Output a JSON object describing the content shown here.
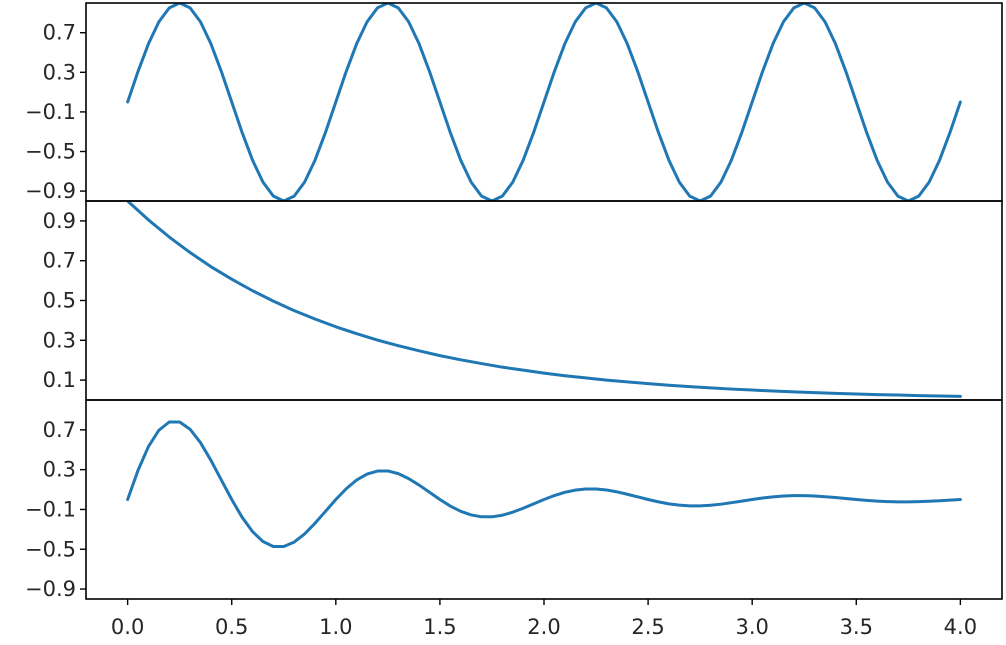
{
  "chart_data": [
    {
      "type": "line",
      "panel": "top",
      "title": "",
      "xlabel": "",
      "ylabel": "",
      "xlim": [
        -0.2,
        4.2
      ],
      "ylim": [
        -1.0,
        1.0
      ],
      "yticks": [
        0.7,
        0.3,
        -0.1,
        -0.5,
        -0.9
      ],
      "ytick_labels": [
        "0.7",
        "0.3",
        "−0.1",
        "−0.5",
        "−0.9"
      ],
      "grid": false,
      "legend": "none",
      "series": [
        {
          "color": "#1f77b4",
          "x": [
            0.0,
            0.05,
            0.1,
            0.15,
            0.2,
            0.25,
            0.3,
            0.35,
            0.4,
            0.45,
            0.5,
            0.55,
            0.6,
            0.65,
            0.7,
            0.75,
            0.8,
            0.85,
            0.9,
            0.95,
            1.0,
            1.05,
            1.1,
            1.15,
            1.2,
            1.25,
            1.3,
            1.35,
            1.4,
            1.45,
            1.5,
            1.55,
            1.6,
            1.65,
            1.7,
            1.75,
            1.8,
            1.85,
            1.9,
            1.95,
            2.0,
            2.05,
            2.1,
            2.15,
            2.2,
            2.25,
            2.3,
            2.35,
            2.4,
            2.45,
            2.5,
            2.55,
            2.6,
            2.65,
            2.7,
            2.75,
            2.8,
            2.85,
            2.9,
            2.95,
            3.0,
            3.05,
            3.1,
            3.15,
            3.2,
            3.25,
            3.3,
            3.35,
            3.4,
            3.45,
            3.5,
            3.55,
            3.6,
            3.65,
            3.7,
            3.75,
            3.8,
            3.85,
            3.9,
            3.95,
            4.0
          ],
          "y": [
            0.0,
            0.309,
            0.588,
            0.809,
            0.951,
            1.0,
            0.951,
            0.809,
            0.588,
            0.309,
            0.0,
            -0.309,
            -0.588,
            -0.809,
            -0.951,
            -1.0,
            -0.951,
            -0.809,
            -0.588,
            -0.309,
            0.0,
            0.309,
            0.588,
            0.809,
            0.951,
            1.0,
            0.951,
            0.809,
            0.588,
            0.309,
            0.0,
            -0.309,
            -0.588,
            -0.809,
            -0.951,
            -1.0,
            -0.951,
            -0.809,
            -0.588,
            -0.309,
            0.0,
            0.309,
            0.588,
            0.809,
            0.951,
            1.0,
            0.951,
            0.809,
            0.588,
            0.309,
            0.0,
            -0.309,
            -0.588,
            -0.809,
            -0.951,
            -1.0,
            -0.951,
            -0.809,
            -0.588,
            -0.309,
            0.0,
            0.309,
            0.588,
            0.809,
            0.951,
            1.0,
            0.951,
            0.809,
            0.588,
            0.309,
            0.0,
            -0.309,
            -0.588,
            -0.809,
            -0.951,
            -1.0,
            -0.951,
            -0.809,
            -0.588,
            -0.309,
            0.0
          ]
        }
      ]
    },
    {
      "type": "line",
      "panel": "middle",
      "title": "",
      "xlabel": "",
      "ylabel": "",
      "xlim": [
        -0.2,
        4.2
      ],
      "ylim": [
        0.0,
        1.0
      ],
      "yticks": [
        0.9,
        0.7,
        0.5,
        0.3,
        0.1
      ],
      "ytick_labels": [
        "0.9",
        "0.7",
        "0.5",
        "0.3",
        "0.1"
      ],
      "grid": false,
      "legend": "none",
      "series": [
        {
          "color": "#1f77b4",
          "x": [
            0.0,
            0.1,
            0.2,
            0.3,
            0.4,
            0.5,
            0.6,
            0.7,
            0.8,
            0.9,
            1.0,
            1.1,
            1.2,
            1.3,
            1.4,
            1.5,
            1.6,
            1.7,
            1.8,
            1.9,
            2.0,
            2.1,
            2.2,
            2.3,
            2.4,
            2.5,
            2.6,
            2.7,
            2.8,
            2.9,
            3.0,
            3.1,
            3.2,
            3.3,
            3.4,
            3.5,
            3.6,
            3.7,
            3.8,
            3.9,
            4.0
          ],
          "y": [
            1.0,
            0.905,
            0.819,
            0.741,
            0.67,
            0.607,
            0.549,
            0.497,
            0.449,
            0.407,
            0.368,
            0.333,
            0.301,
            0.273,
            0.247,
            0.223,
            0.202,
            0.183,
            0.165,
            0.15,
            0.135,
            0.122,
            0.111,
            0.1,
            0.091,
            0.082,
            0.074,
            0.067,
            0.061,
            0.055,
            0.05,
            0.045,
            0.041,
            0.037,
            0.033,
            0.03,
            0.027,
            0.025,
            0.022,
            0.02,
            0.018
          ]
        }
      ]
    },
    {
      "type": "line",
      "panel": "bottom",
      "title": "",
      "xlabel": "",
      "ylabel": "",
      "xlim": [
        -0.2,
        4.2
      ],
      "ylim": [
        -1.0,
        1.0
      ],
      "yticks": [
        0.7,
        0.3,
        -0.1,
        -0.5,
        -0.9
      ],
      "ytick_labels": [
        "0.7",
        "0.3",
        "−0.1",
        "−0.5",
        "−0.9"
      ],
      "xticks": [
        0.0,
        0.5,
        1.0,
        1.5,
        2.0,
        2.5,
        3.0,
        3.5,
        4.0
      ],
      "xtick_labels": [
        "0.0",
        "0.5",
        "1.0",
        "1.5",
        "2.0",
        "2.5",
        "3.0",
        "3.5",
        "4.0"
      ],
      "grid": false,
      "legend": "none",
      "series": [
        {
          "color": "#1f77b4",
          "x": [
            0.0,
            0.05,
            0.1,
            0.15,
            0.2,
            0.25,
            0.3,
            0.35,
            0.4,
            0.45,
            0.5,
            0.55,
            0.6,
            0.65,
            0.7,
            0.75,
            0.8,
            0.85,
            0.9,
            0.95,
            1.0,
            1.05,
            1.1,
            1.15,
            1.2,
            1.25,
            1.3,
            1.35,
            1.4,
            1.45,
            1.5,
            1.55,
            1.6,
            1.65,
            1.7,
            1.75,
            1.8,
            1.85,
            1.9,
            1.95,
            2.0,
            2.05,
            2.1,
            2.15,
            2.2,
            2.25,
            2.3,
            2.35,
            2.4,
            2.45,
            2.5,
            2.55,
            2.6,
            2.65,
            2.7,
            2.75,
            2.8,
            2.85,
            2.9,
            2.95,
            3.0,
            3.05,
            3.1,
            3.15,
            3.2,
            3.25,
            3.3,
            3.35,
            3.4,
            3.45,
            3.5,
            3.55,
            3.6,
            3.65,
            3.7,
            3.75,
            3.8,
            3.85,
            3.9,
            3.95,
            4.0
          ],
          "y": [
            0.0,
            0.294,
            0.532,
            0.696,
            0.779,
            0.779,
            0.706,
            0.571,
            0.394,
            0.197,
            0.0,
            -0.179,
            -0.323,
            -0.422,
            -0.472,
            -0.472,
            -0.428,
            -0.346,
            -0.239,
            -0.12,
            0.0,
            0.108,
            0.196,
            0.256,
            0.286,
            0.287,
            0.26,
            0.21,
            0.145,
            0.073,
            0.0,
            -0.066,
            -0.119,
            -0.155,
            -0.174,
            -0.174,
            -0.158,
            -0.127,
            -0.088,
            -0.044,
            0.0,
            0.04,
            0.072,
            0.094,
            0.105,
            0.105,
            0.096,
            0.077,
            0.053,
            0.027,
            0.0,
            -0.024,
            -0.044,
            -0.057,
            -0.064,
            -0.064,
            -0.058,
            -0.047,
            -0.032,
            -0.016,
            0.0,
            0.015,
            0.026,
            0.035,
            0.039,
            0.039,
            0.035,
            0.028,
            0.02,
            0.01,
            0.0,
            -0.009,
            -0.016,
            -0.021,
            -0.024,
            -0.024,
            -0.021,
            -0.017,
            -0.012,
            -0.006,
            0.0
          ]
        }
      ]
    }
  ]
}
